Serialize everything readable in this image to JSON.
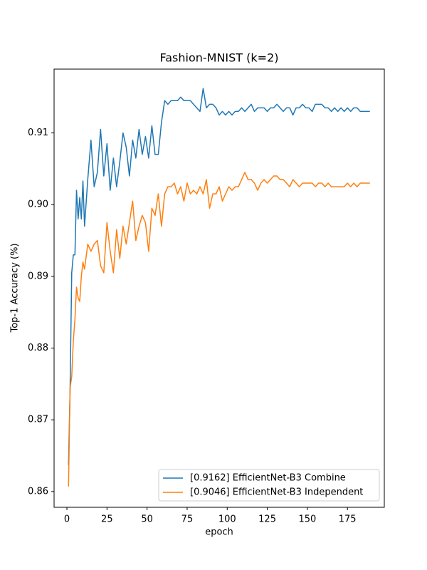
{
  "chart_data": {
    "type": "line",
    "title": "Fashion-MNIST (k=2)",
    "x_label": "epoch",
    "y_label": "Top-1 Accuracy (%)",
    "x": [
      1,
      2,
      3,
      4,
      5,
      6,
      7,
      8,
      9,
      10,
      11,
      13,
      15,
      17,
      19,
      21,
      23,
      25,
      27,
      29,
      31,
      33,
      35,
      37,
      39,
      41,
      43,
      45,
      47,
      49,
      51,
      53,
      55,
      57,
      59,
      61,
      63,
      65,
      67,
      69,
      71,
      73,
      75,
      77,
      79,
      81,
      83,
      85,
      87,
      89,
      91,
      93,
      95,
      97,
      99,
      101,
      103,
      105,
      107,
      109,
      111,
      113,
      115,
      117,
      119,
      121,
      123,
      125,
      127,
      129,
      131,
      133,
      135,
      137,
      139,
      141,
      143,
      145,
      147,
      149,
      151,
      153,
      155,
      157,
      159,
      161,
      163,
      165,
      167,
      169,
      171,
      173,
      175,
      177,
      179,
      181,
      183,
      185,
      187,
      189
    ],
    "series": [
      {
        "name": "[0.9162] EfficientNet-B3 Combine",
        "color": "#1f77b4",
        "values": [
          0.8637,
          0.8745,
          0.8905,
          0.893,
          0.893,
          0.902,
          0.898,
          0.901,
          0.898,
          0.9033,
          0.897,
          0.9035,
          0.909,
          0.9025,
          0.9045,
          0.9105,
          0.904,
          0.9085,
          0.902,
          0.9065,
          0.9025,
          0.906,
          0.91,
          0.908,
          0.904,
          0.909,
          0.9065,
          0.9105,
          0.907,
          0.9095,
          0.9065,
          0.911,
          0.907,
          0.907,
          0.9115,
          0.9145,
          0.914,
          0.9145,
          0.9145,
          0.9145,
          0.915,
          0.9145,
          0.9145,
          0.9145,
          0.914,
          0.9135,
          0.913,
          0.9162,
          0.9135,
          0.914,
          0.914,
          0.9135,
          0.9125,
          0.913,
          0.9125,
          0.913,
          0.9125,
          0.913,
          0.913,
          0.9135,
          0.913,
          0.9135,
          0.914,
          0.913,
          0.9135,
          0.9135,
          0.9135,
          0.913,
          0.9135,
          0.9135,
          0.914,
          0.9135,
          0.913,
          0.9135,
          0.9135,
          0.9125,
          0.9135,
          0.9135,
          0.914,
          0.9135,
          0.9135,
          0.913,
          0.914,
          0.914,
          0.914,
          0.9135,
          0.9135,
          0.913,
          0.9135,
          0.913,
          0.9135,
          0.913,
          0.9135,
          0.913,
          0.9135,
          0.9135,
          0.913,
          0.913,
          0.913,
          0.913
        ]
      },
      {
        "name": "[0.9046] EfficientNet-B3 Independent",
        "color": "#ff7f0e",
        "values": [
          0.8607,
          0.8745,
          0.876,
          0.881,
          0.884,
          0.8885,
          0.887,
          0.8865,
          0.89,
          0.892,
          0.891,
          0.8945,
          0.8935,
          0.8945,
          0.895,
          0.8915,
          0.8905,
          0.8975,
          0.8935,
          0.8905,
          0.8965,
          0.8925,
          0.897,
          0.8945,
          0.8975,
          0.9005,
          0.895,
          0.897,
          0.8985,
          0.8975,
          0.8935,
          0.8995,
          0.8985,
          0.9015,
          0.897,
          0.9015,
          0.9025,
          0.9025,
          0.903,
          0.9015,
          0.9025,
          0.9005,
          0.903,
          0.9015,
          0.902,
          0.9015,
          0.9025,
          0.9015,
          0.9035,
          0.8995,
          0.9015,
          0.9015,
          0.9025,
          0.9005,
          0.9015,
          0.9025,
          0.902,
          0.9025,
          0.9025,
          0.9035,
          0.9045,
          0.9035,
          0.9035,
          0.903,
          0.902,
          0.903,
          0.9035,
          0.903,
          0.9035,
          0.904,
          0.904,
          0.9035,
          0.9035,
          0.903,
          0.9025,
          0.9035,
          0.903,
          0.9025,
          0.903,
          0.903,
          0.903,
          0.903,
          0.9025,
          0.903,
          0.903,
          0.9025,
          0.903,
          0.9025,
          0.9025,
          0.9025,
          0.9025,
          0.9025,
          0.903,
          0.9025,
          0.903,
          0.9025,
          0.903,
          0.903,
          0.903,
          0.903
        ]
      }
    ],
    "xlim": [
      -8,
      198
    ],
    "ylim": [
      0.8578,
      0.9189
    ],
    "xticks": [
      0,
      25,
      50,
      75,
      100,
      125,
      150,
      175
    ],
    "yticks": [
      0.86,
      0.87,
      0.88,
      0.89,
      {
        "value": 0.9,
        "label": "0.90"
      },
      0.91
    ],
    "grid": false,
    "legend": "lower right"
  }
}
